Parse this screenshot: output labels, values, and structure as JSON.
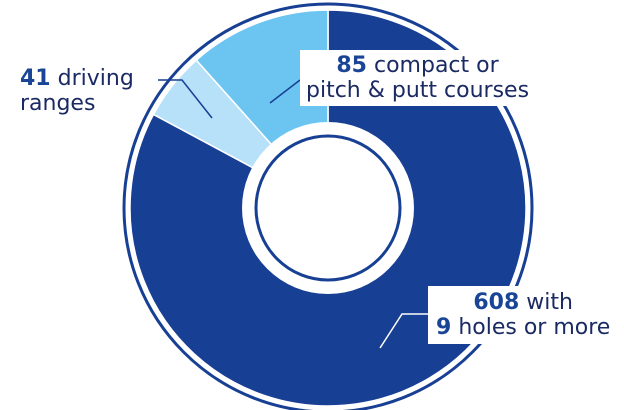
{
  "chart_data": {
    "type": "pie",
    "style": "donut",
    "slices": [
      {
        "value": 608,
        "color": "#173f93"
      },
      {
        "value": 41,
        "color": "#b6e1f9"
      },
      {
        "value": 85,
        "color": "#6cc5f1"
      }
    ],
    "labels": {
      "ranges": {
        "number": "41",
        "line1": "driving",
        "line2": "ranges"
      },
      "compact": {
        "number": "85",
        "line1": "compact or",
        "line2": "pitch & putt courses"
      },
      "holes": {
        "number": "608",
        "line1": "with",
        "number2": "9",
        "line2": "holes or more"
      }
    },
    "outline_color": "#173f93"
  }
}
